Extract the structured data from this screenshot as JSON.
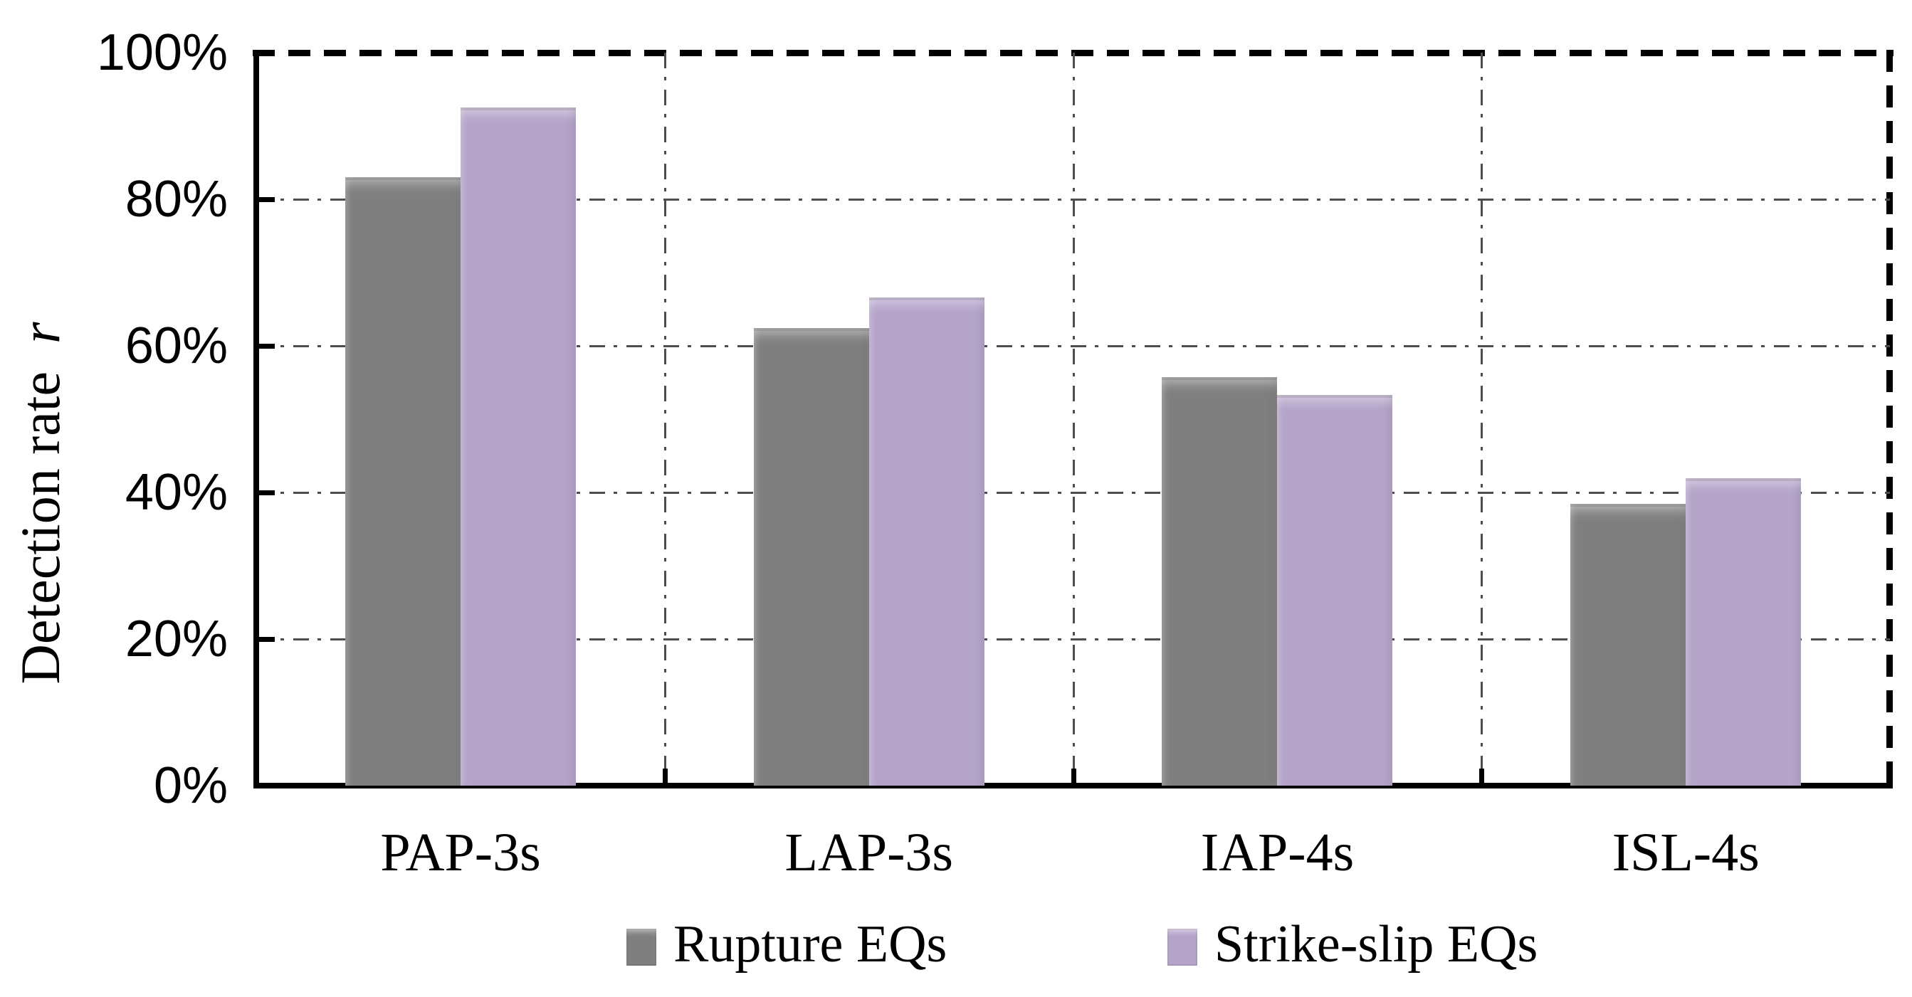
{
  "chart_data": {
    "type": "bar",
    "title": "",
    "ylabel_text": "Detection rate",
    "ylabel_symbol": "r",
    "categories": [
      "PAP-3s",
      "LAP-3s",
      "IAP-4s",
      "ISL-4s"
    ],
    "series": [
      {
        "name": "Rupture EQs",
        "color": "#7f7f7f",
        "edge": "#6e6e6e",
        "values": [
          83.0,
          62.4,
          55.7,
          38.4
        ]
      },
      {
        "name": "Strike-slip EQs",
        "color": "#b5a4ca",
        "edge": "#a392ba",
        "values": [
          92.5,
          66.6,
          53.3,
          41.9
        ]
      }
    ],
    "y_axis": {
      "min": 0,
      "max": 100,
      "step": 20,
      "tick_labels": [
        "0%",
        "20%",
        "40%",
        "60%",
        "80%",
        "100%"
      ],
      "format": "percent"
    },
    "x_axis": {
      "label": ""
    },
    "grid": {
      "horizontal": true,
      "vertical": true,
      "style": "dash-dot",
      "color": "#4d4d4d"
    },
    "plot_border": {
      "top": "thick-dashed",
      "right": "thick-dashed",
      "left": "solid",
      "bottom": "solid"
    },
    "legend_position": "bottom"
  }
}
